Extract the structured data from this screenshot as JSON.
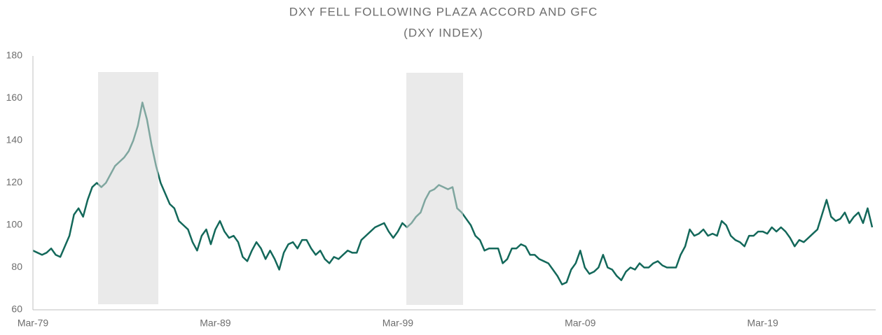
{
  "chart_data": {
    "type": "line",
    "title": "DXY FELL FOLLOWING PLAZA ACCORD AND GFC",
    "subtitle": "(DXY INDEX)",
    "categories": [
      "Mar-79",
      null,
      null,
      null,
      null,
      null,
      null,
      null,
      null,
      null,
      null,
      null,
      null,
      null,
      null,
      null,
      null,
      null,
      null,
      null,
      null,
      null,
      null,
      null,
      null,
      null,
      null,
      null,
      null,
      null,
      null,
      null,
      null,
      null,
      null,
      null,
      null,
      null,
      null,
      null,
      "Mar-89",
      null,
      null,
      null,
      null,
      null,
      null,
      null,
      null,
      null,
      null,
      null,
      null,
      null,
      null,
      null,
      null,
      null,
      null,
      null,
      null,
      null,
      null,
      null,
      null,
      null,
      null,
      null,
      null,
      null,
      null,
      null,
      null,
      null,
      null,
      null,
      null,
      null,
      null,
      null,
      "Mar-99",
      null,
      null,
      null,
      null,
      null,
      null,
      null,
      null,
      null,
      null,
      null,
      null,
      null,
      null,
      null,
      null,
      null,
      null,
      null,
      null,
      null,
      null,
      null,
      null,
      null,
      null,
      null,
      null,
      null,
      null,
      null,
      null,
      null,
      null,
      null,
      null,
      null,
      null,
      null,
      "Mar-09",
      null,
      null,
      null,
      null,
      null,
      null,
      null,
      null,
      null,
      null,
      null,
      null,
      null,
      null,
      null,
      null,
      null,
      null,
      null,
      null,
      null,
      null,
      null,
      null,
      null,
      null,
      null,
      null,
      null,
      null,
      null,
      null,
      null,
      null,
      null,
      null,
      null,
      null,
      null,
      "Mar-19",
      null,
      null,
      null,
      null,
      null,
      null,
      null,
      null,
      null,
      null,
      null,
      null,
      null,
      null,
      null,
      null,
      null,
      null,
      null,
      null,
      null,
      null,
      null,
      null
    ],
    "values": [
      88,
      87,
      86,
      87,
      89,
      86,
      85,
      90,
      95,
      105,
      108,
      104,
      112,
      118,
      120,
      118,
      120,
      124,
      128,
      130,
      132,
      135,
      140,
      147,
      158,
      150,
      138,
      128,
      120,
      115,
      110,
      108,
      102,
      100,
      98,
      92,
      88,
      95,
      98,
      91,
      98,
      102,
      97,
      94,
      95,
      92,
      85,
      83,
      88,
      92,
      89,
      84,
      88,
      84,
      79,
      87,
      91,
      92,
      89,
      93,
      93,
      89,
      86,
      88,
      84,
      82,
      85,
      84,
      86,
      88,
      87,
      87,
      93,
      95,
      97,
      99,
      100,
      101,
      97,
      94,
      97,
      101,
      99,
      101,
      104,
      106,
      112,
      116,
      117,
      119,
      118,
      117,
      118,
      108,
      106,
      103,
      100,
      95,
      93,
      88,
      89,
      89,
      89,
      82,
      84,
      89,
      89,
      91,
      90,
      86,
      86,
      84,
      83,
      82,
      79,
      76,
      72,
      73,
      79,
      82,
      88,
      80,
      77,
      78,
      80,
      86,
      80,
      79,
      76,
      74,
      78,
      80,
      79,
      82,
      80,
      80,
      82,
      83,
      81,
      80,
      80,
      80,
      86,
      90,
      98,
      95,
      96,
      98,
      95,
      96,
      95,
      102,
      100,
      95,
      93,
      92,
      90,
      95,
      95,
      97,
      97,
      96,
      99,
      97,
      99,
      97,
      94,
      90,
      93,
      92,
      94,
      96,
      98,
      105,
      112,
      104,
      102,
      103,
      106,
      101,
      104,
      106,
      101,
      108,
      99
    ],
    "color": "#13685a",
    "ylim": [
      60,
      180
    ],
    "yticks": [
      60,
      80,
      100,
      120,
      140,
      160,
      180
    ],
    "grid": false
  }
}
